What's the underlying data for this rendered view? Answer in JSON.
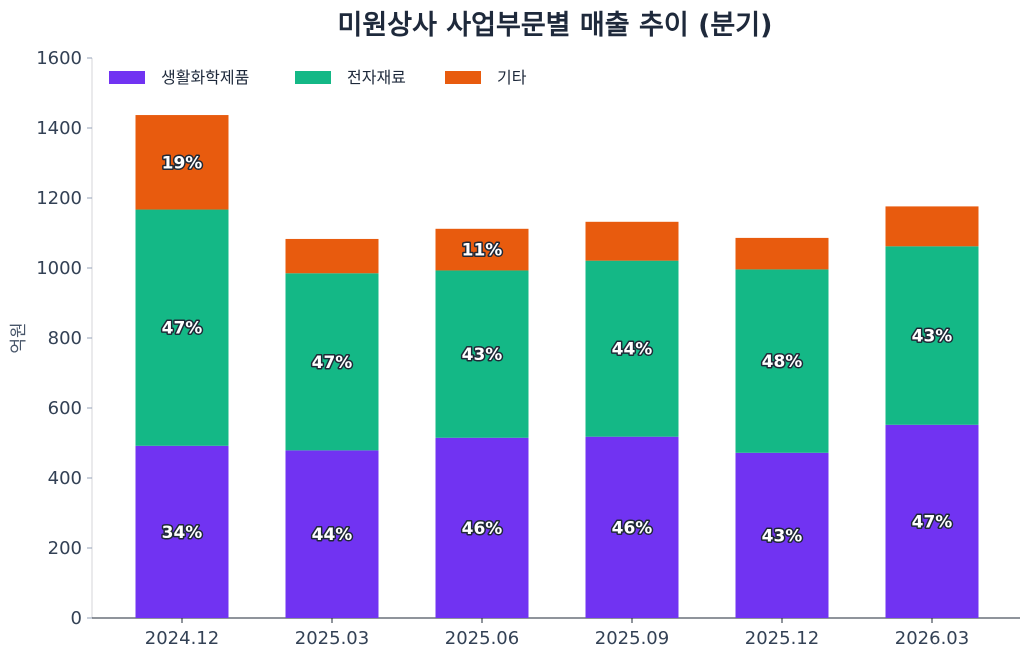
{
  "chart_data": {
    "type": "bar",
    "stacked": true,
    "title": "미원상사 사업부문별 매출 추이 (분기)",
    "xlabel": "",
    "ylabel": "억원",
    "ylim": [
      0,
      1600
    ],
    "yticks": [
      0,
      200,
      400,
      600,
      800,
      1000,
      1200,
      1400,
      1600
    ],
    "categories": [
      "2024.12",
      "2025.03",
      "2025.06",
      "2025.09",
      "2025.12",
      "2026.03"
    ],
    "legend_position": "top-left",
    "grid": false,
    "series": [
      {
        "name": "생활화학제품",
        "color": "#7133f2",
        "values": [
          492,
          479,
          515,
          518,
          472,
          552
        ],
        "labels": [
          "34%",
          "44%",
          "46%",
          "46%",
          "43%",
          "47%"
        ]
      },
      {
        "name": "전자재료",
        "color": "#14b886",
        "values": [
          675,
          506,
          478,
          503,
          524,
          510
        ],
        "labels": [
          "47%",
          "47%",
          "43%",
          "44%",
          "48%",
          "43%"
        ]
      },
      {
        "name": "기타",
        "color": "#e85b0e",
        "values": [
          270,
          98,
          119,
          111,
          90,
          114
        ],
        "labels": [
          "19%",
          "",
          "11%",
          "",
          "",
          ""
        ]
      }
    ]
  }
}
